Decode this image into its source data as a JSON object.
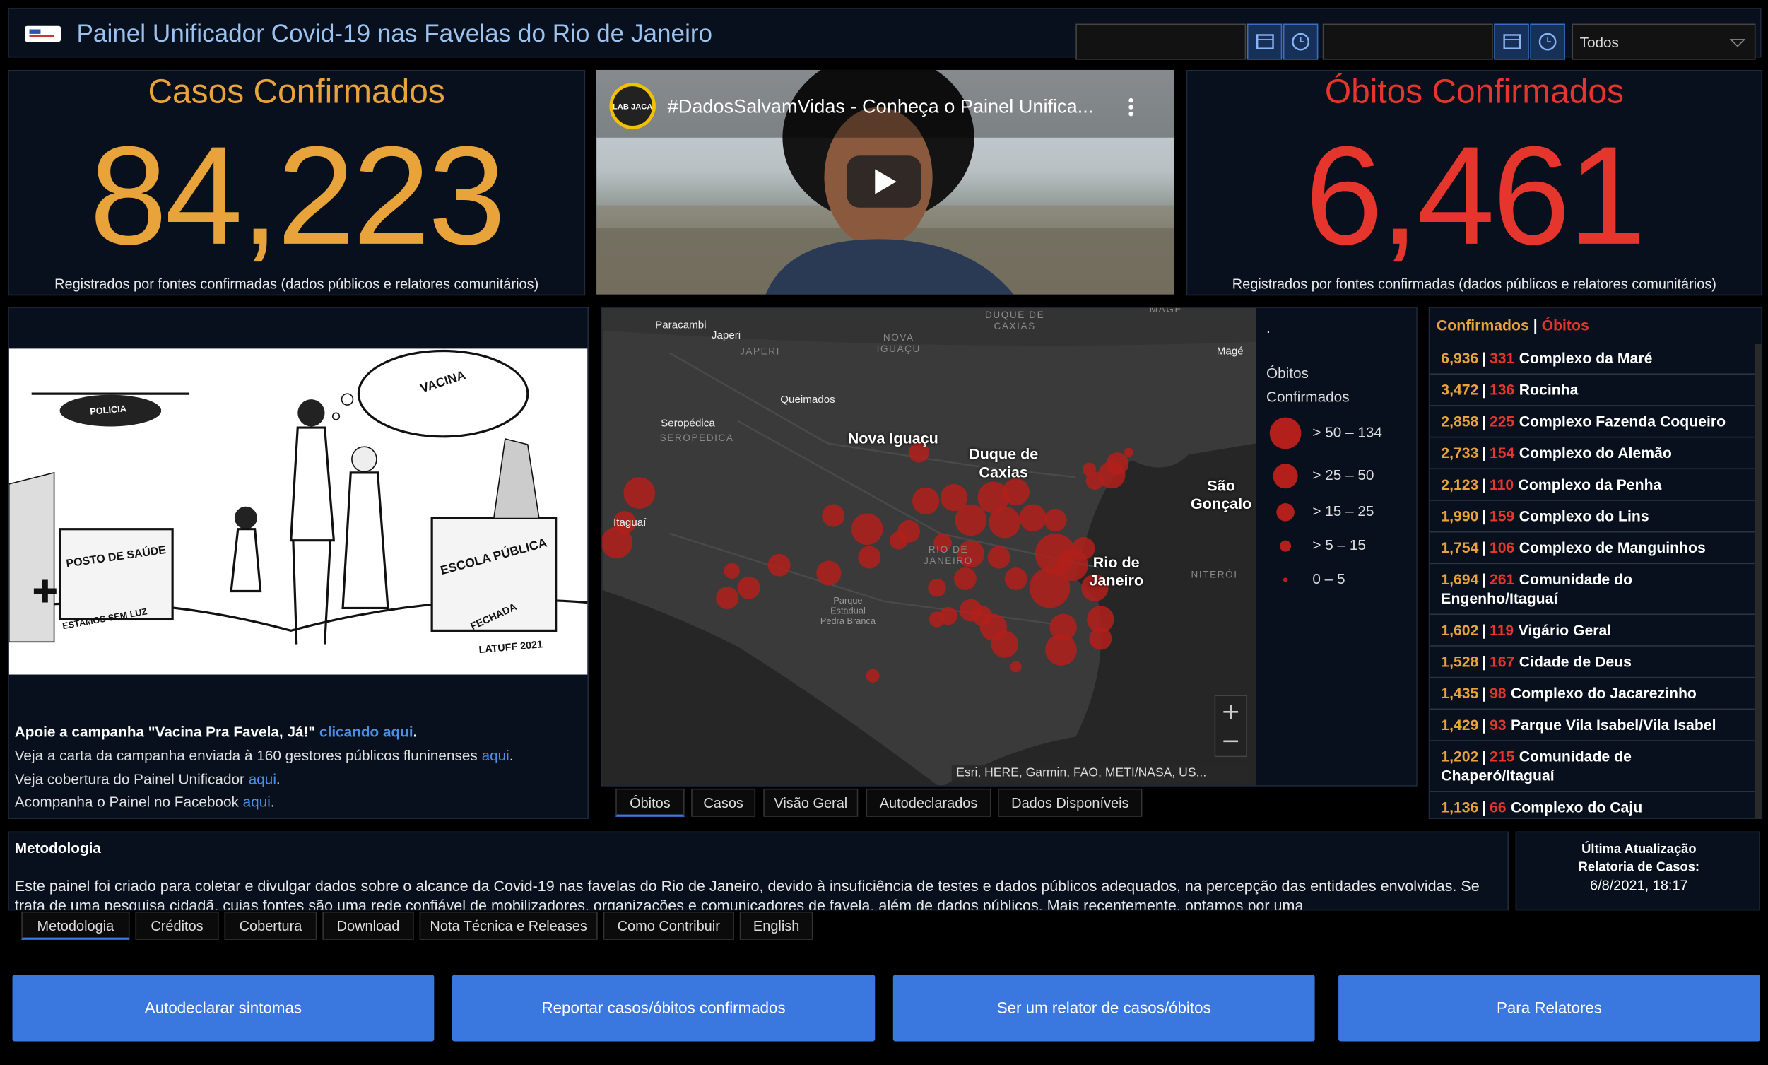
{
  "header": {
    "title": "Painel Unificador Covid-19 nas Favelas do Rio de Janeiro",
    "filter": "Todos"
  },
  "casos": {
    "title": "Casos Confirmados",
    "value": "84,223",
    "caption": "Registrados por fontes confirmadas (dados públicos e relatores comunitários)"
  },
  "video": {
    "title": "#DadosSalvamVidas - Conheça o Painel Unifica...",
    "channel": "LAB JACA"
  },
  "obitos": {
    "title": "Óbitos Confirmados",
    "value": "6,461",
    "caption": "Registrados por fontes confirmadas (dados públicos e relatores comunitários)"
  },
  "campaign": {
    "cartoon_labels": [
      "POLICIA",
      "VACINA",
      "POSTO DE SAÚDE",
      "ESTAMOS SEM LUZ",
      "ESCOLA PÚBLICA",
      "FECHADA",
      "LATUFF 2021"
    ],
    "lines": [
      {
        "text": "Apoie a campanha \"Vacina Pra Favela, Já!\" ",
        "link": "clicando aqui",
        "end": "."
      },
      {
        "text": "Veja a carta da campanha enviada à 160 gestores públicos fluninenses ",
        "link": "aqui",
        "end": "."
      },
      {
        "text": "Veja cobertura do Painel Unificador ",
        "link": "aqui",
        "end": "."
      },
      {
        "text": "Acompanha o Painel no Facebook ",
        "link": "aqui",
        "end": "."
      }
    ]
  },
  "map": {
    "labels": [
      "Paracambi",
      "Japeri",
      "JAPERI",
      "NOVA IGUAÇU",
      "DUQUE DE CAXIAS",
      "MAGÉ",
      "Magé",
      "Queimados",
      "Seropédica",
      "SEROPÉDICA",
      "Nova Iguaçu",
      "Duque de Caxias",
      "São Gonçalo",
      "Itaguaí",
      "RIO DE JANEIRO",
      "Rio de Janeiro",
      "NITERÓI",
      "Parque Estadual Pedra Branca"
    ],
    "legend": {
      "marker": ".",
      "title": "Óbitos Confirmados",
      "classes": [
        "> 50 – 134",
        "> 25 – 50",
        "> 15 – 25",
        "> 5 – 15",
        "0 – 5"
      ]
    },
    "attribution": "Esri, HERE, Garmin, FAO, METI/NASA, US...",
    "tabs": [
      "Óbitos",
      "Casos",
      "Visão Geral",
      "Autodeclarados",
      "Dados Disponíveis"
    ]
  },
  "ranking": {
    "header": {
      "confirmed": "Confirmados",
      "separator": "|",
      "deaths": "Óbitos"
    },
    "rows": [
      {
        "confirmed": "6,936",
        "deaths": "331",
        "name": "Complexo da Maré"
      },
      {
        "confirmed": "3,472",
        "deaths": "136",
        "name": "Rocinha"
      },
      {
        "confirmed": "2,858",
        "deaths": "225",
        "name": "Complexo Fazenda Coqueiro"
      },
      {
        "confirmed": "2,733",
        "deaths": "154",
        "name": "Complexo do Alemão"
      },
      {
        "confirmed": "2,123",
        "deaths": "110",
        "name": "Complexo da Penha"
      },
      {
        "confirmed": "1,990",
        "deaths": "159",
        "name": "Complexo do Lins"
      },
      {
        "confirmed": "1,754",
        "deaths": "106",
        "name": "Complexo de Manguinhos"
      },
      {
        "confirmed": "1,694",
        "deaths": "261",
        "name": "Comunidade do Engenho/Itaguaí"
      },
      {
        "confirmed": "1,602",
        "deaths": "119",
        "name": "Vigário Geral"
      },
      {
        "confirmed": "1,528",
        "deaths": "167",
        "name": "Cidade de Deus"
      },
      {
        "confirmed": "1,435",
        "deaths": "98",
        "name": "Complexo do Jacarezinho"
      },
      {
        "confirmed": "1,429",
        "deaths": "93",
        "name": "Parque Vila Isabel/Vila Isabel"
      },
      {
        "confirmed": "1,202",
        "deaths": "215",
        "name": "Comunidade de Chaperó/Itaguaí"
      },
      {
        "confirmed": "1,136",
        "deaths": "66",
        "name": "Complexo do Caju"
      }
    ]
  },
  "metodologia": {
    "title": "Metodologia",
    "text": "Este painel foi criado para coletar e divulgar dados sobre o alcance da Covid-19 nas favelas do Rio de Janeiro, devido à insuficiência de testes e dados públicos adequados, na percepção das entidades envolvidas. Se trata de uma pesquisa cidadã, cujas fontes são uma rede confiável de mobilizadores, organizações e comunicadores de favela, além de dados públicos. Mais recentemente, optamos por uma",
    "update_title": "Última Atualização Relatoria de Casos:",
    "update_time": "6/8/2021, 18:17",
    "tabs": [
      "Metodologia",
      "Créditos",
      "Cobertura",
      "Download",
      "Nota Técnica e Releases",
      "Como Contribuir",
      "English"
    ]
  },
  "buttons": [
    "Autodeclarar sintomas",
    "Reportar casos/óbitos confirmados",
    "Ser um relator de casos/óbitos",
    "Para Relatores"
  ]
}
